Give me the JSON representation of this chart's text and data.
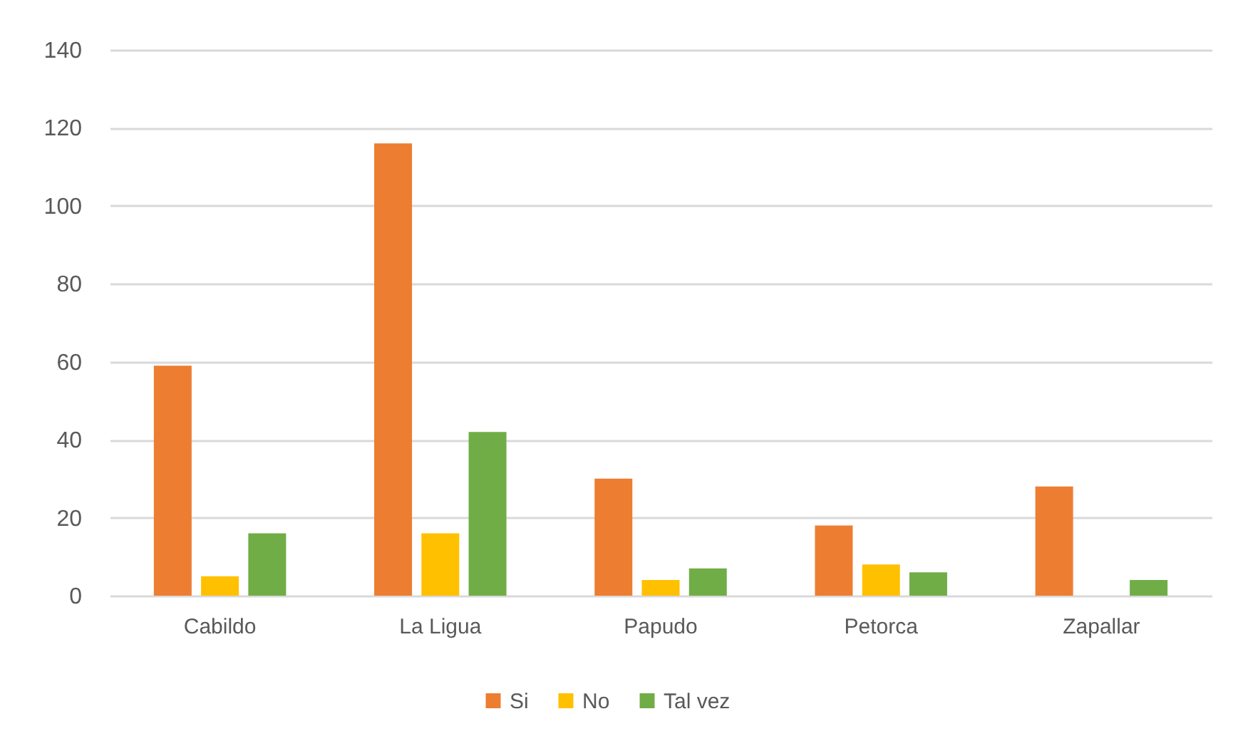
{
  "chart_data": {
    "type": "bar",
    "categories": [
      "Cabildo",
      "La Ligua",
      "Papudo",
      "Petorca",
      "Zapallar"
    ],
    "series": [
      {
        "name": "Si",
        "color": "#ed7d31",
        "values": [
          59,
          116,
          30,
          18,
          28
        ]
      },
      {
        "name": "No",
        "color": "#ffc000",
        "values": [
          5,
          16,
          4,
          8,
          0
        ]
      },
      {
        "name": "Tal vez",
        "color": "#70ad47",
        "values": [
          16,
          42,
          7,
          6,
          4
        ]
      }
    ],
    "ylim": [
      0,
      140
    ],
    "yticks": [
      0,
      20,
      40,
      60,
      80,
      100,
      120,
      140
    ],
    "grid": "y",
    "legend": "bottom"
  }
}
